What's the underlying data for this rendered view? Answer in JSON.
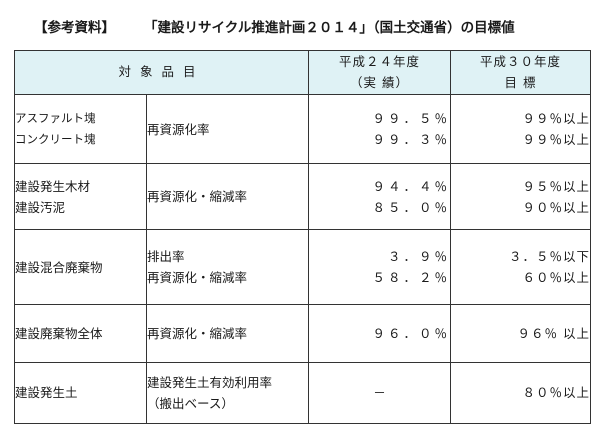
{
  "heading": {
    "reference": "【参考資料】",
    "title": "「建設リサイクル推進計画２０１４」（国土交通省）の目標値"
  },
  "table": {
    "header": {
      "item": "対象品目",
      "fy24_line1": "平成２４年度",
      "fy24_line2": "（実 績）",
      "fy30_line1": "平成３０年度",
      "fy30_line2": "目 標"
    },
    "rows": [
      {
        "items": [
          "アスファルト塊",
          "コンクリート塊"
        ],
        "indicators": [
          "再資源化率"
        ],
        "fy24": [
          "９９．５％",
          "９９．３％"
        ],
        "fy30": [
          "９９％以上",
          "９９％以上"
        ]
      },
      {
        "items": [
          "建設発生木材",
          "建設汚泥"
        ],
        "indicators": [
          "再資源化・縮減率"
        ],
        "fy24": [
          "９４．４％",
          "８５．０％"
        ],
        "fy30": [
          "９５％以上",
          "９０％以上"
        ]
      },
      {
        "items": [
          "建設混合廃棄物"
        ],
        "indicators": [
          "排出率",
          "再資源化・縮減率"
        ],
        "fy24": [
          "３．９％",
          "５８．２％"
        ],
        "fy30": [
          "３．５％以下",
          "６０％以上"
        ]
      },
      {
        "items": [
          "建設廃棄物全体"
        ],
        "indicators": [
          "再資源化・縮減率"
        ],
        "fy24": [
          "９６．０％"
        ],
        "fy30": [
          "９６％ 以上"
        ]
      },
      {
        "items": [
          "建設発生土"
        ],
        "indicators": [
          "建設発生土有効利用率",
          "（搬出ベース）"
        ],
        "fy24": [
          "－"
        ],
        "fy30": [
          "８０％以上"
        ]
      }
    ]
  }
}
